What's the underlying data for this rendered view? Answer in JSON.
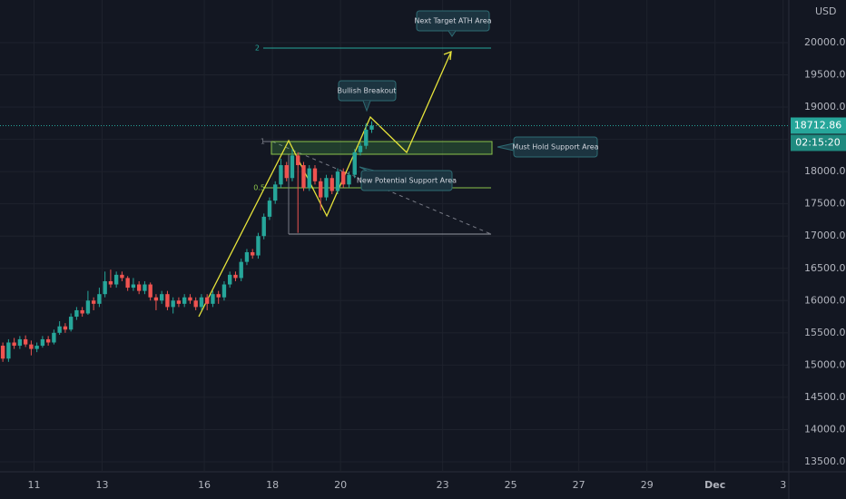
{
  "chart_data": {
    "type": "candlestick",
    "currency": "USD",
    "current_price": 18712.86,
    "current_price_label": "18712.86",
    "countdown": "02:15:20",
    "up_color": "#26a69a",
    "down_color": "#ef5350",
    "open": [
      15300,
      15100,
      15350,
      15300,
      15400,
      15320,
      15250,
      15300,
      15400,
      15350,
      15500,
      15600,
      15550,
      15750,
      15850,
      15800,
      16000,
      15950,
      16100,
      16300,
      16250,
      16400,
      16350,
      16200,
      16250,
      16150,
      16250,
      16050,
      16000,
      16100,
      15900,
      16000,
      15950,
      16050,
      16000,
      15900,
      16050,
      15950,
      16100,
      16050,
      16250,
      16400,
      16350,
      16600,
      16750,
      16700,
      17000,
      17300,
      17550,
      17800,
      18100,
      17900,
      18250,
      18100,
      17750,
      18050,
      17850,
      17600,
      17900,
      17700,
      18000,
      17800,
      17950,
      18300,
      18400,
      18650
    ],
    "high": [
      15350,
      15400,
      15420,
      15450,
      15460,
      15380,
      15350,
      15450,
      15450,
      15550,
      15680,
      15650,
      15800,
      15900,
      15900,
      16150,
      16050,
      16200,
      16450,
      16480,
      16450,
      16450,
      16380,
      16350,
      16300,
      16300,
      16280,
      16100,
      16150,
      16150,
      16050,
      16050,
      16100,
      16100,
      16050,
      16100,
      16100,
      16150,
      16150,
      16300,
      16450,
      16450,
      16650,
      16800,
      16800,
      17050,
      17350,
      17600,
      17850,
      18200,
      18150,
      18350,
      18300,
      18150,
      18100,
      18100,
      17900,
      17950,
      17950,
      18050,
      18050,
      18000,
      18350,
      18450,
      18750,
      18780
    ],
    "low": [
      15050,
      15050,
      15250,
      15250,
      15280,
      15150,
      15200,
      15270,
      15300,
      15320,
      15470,
      15500,
      15520,
      15700,
      15750,
      15780,
      15850,
      15900,
      16050,
      16200,
      16200,
      16300,
      16150,
      16150,
      16100,
      16100,
      16000,
      15850,
      15950,
      15850,
      15800,
      15900,
      15900,
      15950,
      15850,
      15850,
      15850,
      15900,
      15950,
      16000,
      16200,
      16300,
      16300,
      16550,
      16650,
      16650,
      16950,
      17250,
      17500,
      17750,
      17850,
      17850,
      17050,
      17700,
      17700,
      17800,
      17400,
      17550,
      17650,
      17650,
      17750,
      17750,
      17900,
      18250,
      18350,
      18600
    ],
    "close": [
      15100,
      15350,
      15300,
      15400,
      15320,
      15250,
      15300,
      15400,
      15350,
      15500,
      15600,
      15550,
      15750,
      15850,
      15800,
      16000,
      15950,
      16100,
      16300,
      16250,
      16400,
      16350,
      16200,
      16250,
      16150,
      16250,
      16050,
      16000,
      16100,
      15900,
      16000,
      15950,
      16050,
      16000,
      15900,
      16050,
      15950,
      16100,
      16050,
      16250,
      16400,
      16350,
      16600,
      16750,
      16700,
      17000,
      17300,
      17550,
      17800,
      18100,
      17900,
      18250,
      18100,
      17750,
      18050,
      17850,
      17600,
      17900,
      17700,
      18000,
      17800,
      17950,
      18300,
      18400,
      18650,
      18712.86
    ],
    "xlim": [
      0,
      139
    ],
    "xticks": [
      {
        "value": 6,
        "label": "11"
      },
      {
        "value": 18,
        "label": "13"
      },
      {
        "value": 36,
        "label": "16"
      },
      {
        "value": 48,
        "label": "18"
      },
      {
        "value": 60,
        "label": "20"
      },
      {
        "value": 78,
        "label": "23"
      },
      {
        "value": 90,
        "label": "25"
      },
      {
        "value": 102,
        "label": "27"
      },
      {
        "value": 114,
        "label": "29"
      },
      {
        "value": 126,
        "label": "Dec"
      },
      {
        "value": 138,
        "label": "3"
      }
    ],
    "ylim": [
      13345,
      20661
    ],
    "yticks": [
      {
        "value": 13500,
        "label": "13500.00"
      },
      {
        "value": 14000,
        "label": "14000.00"
      },
      {
        "value": 14500,
        "label": "14500.00"
      },
      {
        "value": 15000,
        "label": "15000.00"
      },
      {
        "value": 15500,
        "label": "15500.00"
      },
      {
        "value": 16000,
        "label": "16000.00"
      },
      {
        "value": 16500,
        "label": "16500.00"
      },
      {
        "value": 17000,
        "label": "17000.00"
      },
      {
        "value": 17500,
        "label": "17500.00"
      },
      {
        "value": 18000,
        "label": "18000.00"
      },
      {
        "value": 18500,
        "label": "18500.00"
      },
      {
        "value": 19000,
        "label": "19000.00"
      },
      {
        "value": 19500,
        "label": "19500.00"
      },
      {
        "value": 20000,
        "label": "20000.00"
      }
    ],
    "annotations": {
      "target": "Next Target ATH Area",
      "breakout": "Bullish Breakout",
      "hold": "Must Hold Support Area",
      "potential": "New Potential Support Area",
      "fib_2": "2",
      "fib_1": "1",
      "fib_05": "0.5"
    }
  }
}
